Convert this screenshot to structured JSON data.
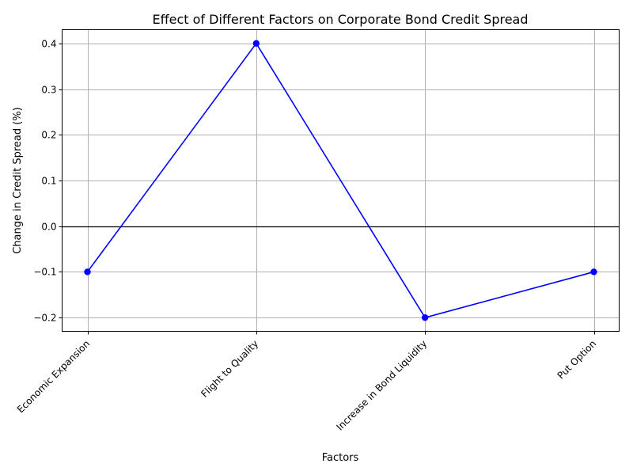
{
  "chart_data": {
    "type": "line",
    "title": "Effect of Different Factors on Corporate Bond Credit Spread",
    "xlabel": "Factors",
    "ylabel": "Change in Credit Spread (%)",
    "categories": [
      "Economic Expansion",
      "Flight to Quality",
      "Increase in Bond Liquidity",
      "Put Option"
    ],
    "values": [
      -0.1,
      0.4,
      -0.2,
      -0.1
    ],
    "ylim": [
      -0.23,
      0.43
    ],
    "yticks": [
      -0.2,
      -0.1,
      0.0,
      0.1,
      0.2,
      0.3,
      0.4
    ],
    "ytick_labels": [
      "−0.2",
      "−0.1",
      "0.0",
      "0.1",
      "0.2",
      "0.3",
      "0.4"
    ],
    "grid": true,
    "zero_line": true,
    "marker": "circle",
    "line_color": "#0000ff",
    "zero_line_color": "#000000",
    "grid_color": "#b0b0b0"
  }
}
